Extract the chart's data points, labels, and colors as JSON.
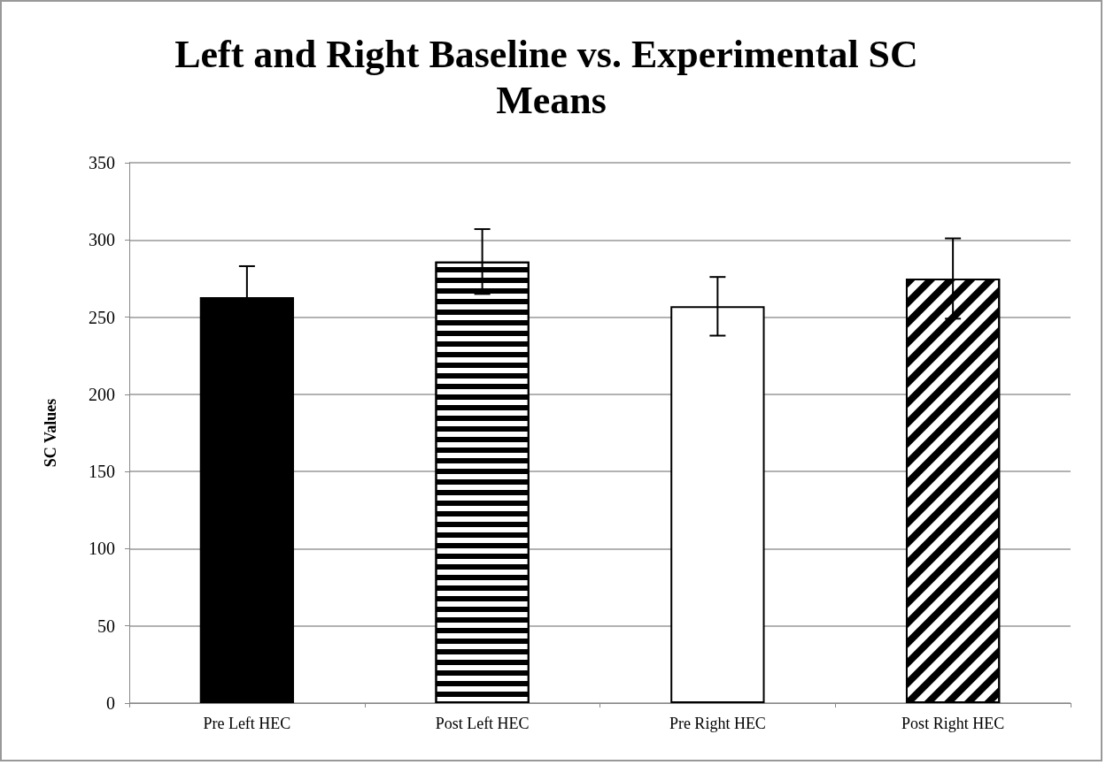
{
  "chart_data": {
    "type": "bar",
    "title": "Left and Right Baseline vs. Experimental SC Means",
    "ylabel": "SC Values",
    "categories": [
      "Pre Left HEC",
      "Post Left HEC",
      "Pre Right HEC",
      "Post Right HEC"
    ],
    "values": [
      263,
      286,
      257,
      275
    ],
    "errors": [
      20,
      21,
      19,
      26
    ],
    "colors": [
      "#000000",
      "#000000",
      "#ffffff",
      "#000000"
    ],
    "ylim": [
      0,
      350
    ],
    "yticks": [
      0,
      50,
      100,
      150,
      200,
      250,
      300,
      350
    ],
    "grid": "y"
  }
}
